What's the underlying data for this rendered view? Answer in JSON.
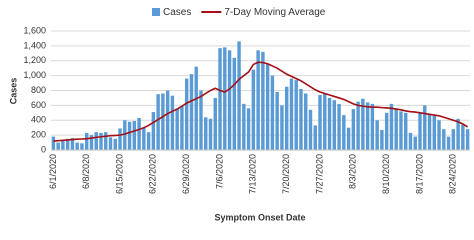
{
  "chart_data": {
    "type": "bar",
    "x_label": "Symptom Onset Date",
    "y_label": "Cases",
    "categories": [
      "6/1/2020",
      null,
      null,
      null,
      null,
      null,
      null,
      "6/8/2020",
      null,
      null,
      null,
      null,
      null,
      null,
      "6/15/2020",
      null,
      null,
      null,
      null,
      null,
      null,
      "6/22/2020",
      null,
      null,
      null,
      null,
      null,
      null,
      "6/29/2020",
      null,
      null,
      null,
      null,
      null,
      null,
      "7/6/2020",
      null,
      null,
      null,
      null,
      null,
      null,
      "7/13/2020",
      null,
      null,
      null,
      null,
      null,
      null,
      "7/20/2020",
      null,
      null,
      null,
      null,
      null,
      null,
      "7/27/2020",
      null,
      null,
      null,
      null,
      null,
      null,
      "8/3/2020",
      null,
      null,
      null,
      null,
      null,
      null,
      "8/10/2020",
      null,
      null,
      null,
      null,
      null,
      null,
      "8/17/2020",
      null,
      null,
      null,
      null,
      null,
      null,
      "8/24/2020",
      null,
      null,
      null
    ],
    "series": [
      {
        "name": "Cases",
        "type": "bar",
        "color": "#5b9bd5",
        "values": [
          180,
          100,
          130,
          150,
          160,
          100,
          90,
          230,
          200,
          240,
          230,
          240,
          170,
          150,
          290,
          400,
          380,
          390,
          430,
          300,
          240,
          510,
          750,
          760,
          800,
          730,
          560,
          590,
          960,
          1020,
          1120,
          800,
          440,
          420,
          700,
          1370,
          1380,
          1340,
          1240,
          1460,
          620,
          560,
          1080,
          1340,
          1320,
          1160,
          1000,
          780,
          600,
          850,
          960,
          940,
          820,
          760,
          540,
          330,
          740,
          760,
          700,
          670,
          620,
          470,
          300,
          550,
          650,
          690,
          640,
          620,
          400,
          270,
          500,
          620,
          560,
          520,
          500,
          230,
          180,
          500,
          600,
          470,
          460,
          400,
          280,
          180,
          280,
          420,
          340,
          280
        ]
      },
      {
        "name": "7-Day Moving Average",
        "type": "line",
        "color": "#a50f15",
        "values": [
          120,
          125,
          130,
          135,
          140,
          145,
          148,
          152,
          160,
          170,
          178,
          185,
          192,
          196,
          200,
          215,
          235,
          255,
          275,
          300,
          330,
          370,
          410,
          450,
          490,
          520,
          550,
          590,
          630,
          660,
          690,
          720,
          760,
          800,
          830,
          800,
          780,
          820,
          880,
          950,
          1000,
          1050,
          1150,
          1180,
          1175,
          1160,
          1130,
          1100,
          1060,
          1020,
          990,
          960,
          930,
          890,
          850,
          810,
          780,
          760,
          740,
          720,
          700,
          680,
          650,
          620,
          600,
          590,
          580,
          575,
          575,
          570,
          565,
          560,
          550,
          540,
          525,
          515,
          510,
          500,
          490,
          480,
          470,
          460,
          440,
          420,
          400,
          380,
          350,
          310
        ]
      }
    ],
    "ylim": [
      0,
      1600
    ],
    "yticks": [
      0,
      200,
      400,
      600,
      800,
      {
        "value": 1000,
        "label": "1,000"
      },
      {
        "value": 1200,
        "label": "1,200"
      },
      {
        "value": 1400,
        "label": "1,400"
      },
      {
        "value": 1600,
        "label": "1,600"
      }
    ],
    "grid": true,
    "legend": "top"
  }
}
